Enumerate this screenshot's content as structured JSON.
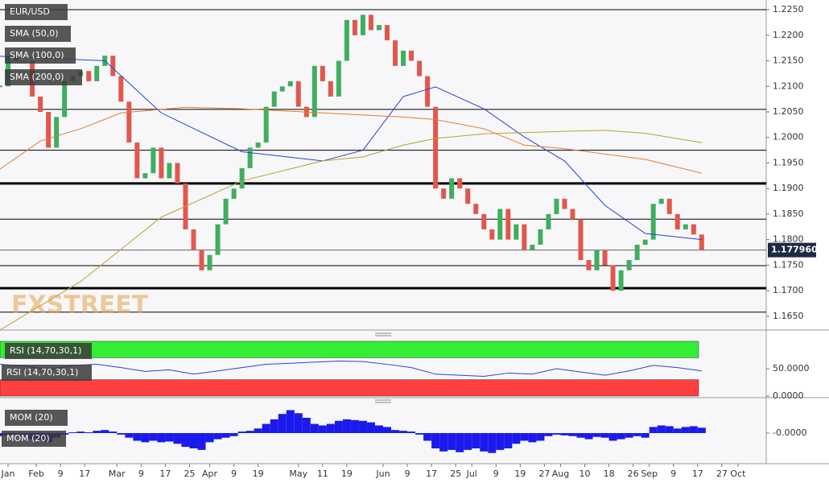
{
  "chart_data": [
    {
      "type": "candlestick",
      "title": "EUR/USD",
      "watermark": "FXSTREET",
      "xlim": [
        12,
        202
      ],
      "ylim": [
        1.1623,
        1.2269
      ],
      "yticks": [
        {
          "value": 1.165,
          "label": "1.1650"
        },
        {
          "value": 1.17,
          "label": "1.1700"
        },
        {
          "value": 1.175,
          "label": "1.1750"
        },
        {
          "value": 1.18,
          "label": "1.1800"
        },
        {
          "value": 1.185,
          "label": "1.1850"
        },
        {
          "value": 1.19,
          "label": "1.1900"
        },
        {
          "value": 1.195,
          "label": "1.1950"
        },
        {
          "value": 1.2,
          "label": "1.2000"
        },
        {
          "value": 1.205,
          "label": "1.2050"
        },
        {
          "value": 1.21,
          "label": "1.2100"
        },
        {
          "value": 1.215,
          "label": "1.2150"
        },
        {
          "value": 1.22,
          "label": "1.2200"
        },
        {
          "value": 1.225,
          "label": "1.2250"
        }
      ],
      "up_color": "#3fae5e",
      "down_color": "#e2574c",
      "x": [
        12,
        14,
        16,
        18,
        20,
        22,
        24,
        26,
        28,
        30,
        32,
        34,
        36,
        38,
        40,
        42,
        44,
        46,
        48,
        50,
        52,
        54,
        56,
        58,
        60,
        62,
        64,
        66,
        68,
        70,
        72,
        74,
        76,
        78,
        80,
        82,
        84,
        86,
        88,
        90,
        92,
        94,
        96,
        98,
        100,
        102,
        104,
        106,
        108,
        110,
        112,
        114,
        116,
        118,
        120,
        122,
        124,
        126,
        128,
        130,
        132,
        134,
        136,
        138,
        140,
        142,
        144,
        146,
        148,
        150,
        152,
        154,
        156,
        158,
        160,
        162,
        164,
        166,
        168,
        170,
        172,
        174,
        176,
        178,
        180,
        182,
        184,
        186
      ],
      "closes": [
        1.21,
        1.216,
        1.215,
        1.215,
        1.208,
        1.205,
        1.198,
        1.204,
        1.211,
        1.212,
        1.213,
        1.211,
        1.214,
        1.216,
        1.212,
        1.207,
        1.199,
        1.192,
        1.193,
        1.198,
        1.192,
        1.195,
        1.191,
        1.182,
        1.178,
        1.174,
        1.177,
        1.183,
        1.188,
        1.19,
        1.194,
        1.198,
        1.199,
        1.206,
        1.209,
        1.21,
        1.211,
        1.206,
        1.204,
        1.214,
        1.211,
        1.208,
        1.215,
        1.223,
        1.22,
        1.224,
        1.221,
        1.222,
        1.219,
        1.214,
        1.217,
        1.215,
        1.212,
        1.206,
        1.19,
        1.188,
        1.192,
        1.19,
        1.187,
        1.185,
        1.182,
        1.18,
        1.186,
        1.18,
        1.183,
        1.178,
        1.179,
        1.182,
        1.185,
        1.188,
        1.186,
        1.184,
        1.176,
        1.174,
        1.178,
        1.175,
        1.17,
        1.174,
        1.176,
        1.179,
        1.18,
        1.187,
        1.188,
        1.185,
        1.182,
        1.183,
        1.181,
        1.178
      ],
      "series": [
        {
          "name": "SMA (50,0)",
          "color": "#2740d8",
          "x": [
            12,
            38,
            52,
            72,
            92,
            102,
            112,
            120,
            132,
            142,
            152,
            162,
            172,
            186
          ],
          "values": [
            1.2159,
            1.215,
            1.2048,
            1.1972,
            1.1954,
            1.1975,
            1.208,
            1.2099,
            1.2056,
            1.2001,
            1.1954,
            1.1867,
            1.1812,
            1.18
          ]
        },
        {
          "name": "SMA (100,0)",
          "color": "#e87a2a",
          "x": [
            12,
            22,
            32,
            42,
            58,
            72,
            92,
            112,
            120,
            132,
            142,
            152,
            172,
            186
          ],
          "values": [
            1.1938,
            1.1993,
            1.2017,
            1.2048,
            1.2059,
            1.2056,
            1.2048,
            1.204,
            1.2035,
            1.2017,
            1.1985,
            1.1978,
            1.1957,
            1.193
          ]
        },
        {
          "name": "SMA (200,0)",
          "color": "#b5a42a",
          "x": [
            12,
            32,
            52,
            72,
            92,
            102,
            112,
            120,
            132,
            152,
            162,
            172,
            186
          ],
          "values": [
            1.1623,
            1.1718,
            1.1844,
            1.1915,
            1.1954,
            1.1962,
            1.1985,
            1.1998,
            1.2007,
            1.2012,
            1.2014,
            1.2008,
            1.199
          ]
        }
      ],
      "levels": [
        {
          "value": 1.225,
          "width": 1
        },
        {
          "value": 1.2055,
          "width": 1
        },
        {
          "value": 1.1975,
          "width": 1
        },
        {
          "value": 1.191,
          "width": 3
        },
        {
          "value": 1.184,
          "width": 1
        },
        {
          "value": 1.1749,
          "width": 1
        },
        {
          "value": 1.1705,
          "width": 3
        },
        {
          "value": 1.1658,
          "width": 1
        }
      ],
      "last_price": {
        "value": 1.17796,
        "label": "1.177960"
      }
    },
    {
      "type": "line",
      "title": "RSI (14,70,30,1)",
      "xlim": [
        12,
        202
      ],
      "ylim": [
        0,
        100
      ],
      "yticks": [
        {
          "value": 50,
          "label": "50.0000"
        },
        {
          "value": 0,
          "label": "0.0000"
        }
      ],
      "bands": [
        {
          "from": 70,
          "to": 100,
          "color": "#33ee33"
        },
        {
          "from": 0,
          "to": 30,
          "color": "#ff4040"
        }
      ],
      "series": [
        {
          "name": "RSI (14,70,30,1)",
          "color": "#2740d8",
          "x": [
            12,
            18,
            24,
            30,
            36,
            42,
            48,
            54,
            60,
            66,
            72,
            78,
            84,
            90,
            96,
            102,
            108,
            114,
            120,
            126,
            132,
            138,
            144,
            150,
            156,
            162,
            168,
            174,
            180,
            186
          ],
          "values": [
            58,
            55,
            48,
            56,
            58,
            52,
            45,
            48,
            40,
            46,
            52,
            58,
            60,
            62,
            64,
            63,
            58,
            52,
            40,
            38,
            36,
            42,
            40,
            50,
            44,
            38,
            46,
            56,
            52,
            46
          ]
        }
      ]
    },
    {
      "type": "bar",
      "title": "MOM (20)",
      "xlim": [
        12,
        202
      ],
      "ylim": [
        -0.04,
        0.04
      ],
      "yticks": [
        {
          "value": 0,
          "label": "-0.0000"
        }
      ],
      "xticks": [
        {
          "value": 14,
          "label": "Jan"
        },
        {
          "value": 21,
          "label": "Feb"
        },
        {
          "value": 27,
          "label": "9"
        },
        {
          "value": 33,
          "label": "17"
        },
        {
          "value": 41,
          "label": "Mar"
        },
        {
          "value": 47,
          "label": "9"
        },
        {
          "value": 53,
          "label": "17"
        },
        {
          "value": 59,
          "label": "25"
        },
        {
          "value": 64,
          "label": "Apr"
        },
        {
          "value": 70,
          "label": "9"
        },
        {
          "value": 76,
          "label": "19"
        },
        {
          "value": 86,
          "label": "May"
        },
        {
          "value": 92,
          "label": "11"
        },
        {
          "value": 98,
          "label": "19"
        },
        {
          "value": 107,
          "label": "Jun"
        },
        {
          "value": 113,
          "label": "9"
        },
        {
          "value": 119,
          "label": "17"
        },
        {
          "value": 125,
          "label": "25"
        },
        {
          "value": 129,
          "label": "Jul"
        },
        {
          "value": 135,
          "label": "9"
        },
        {
          "value": 141,
          "label": "19"
        },
        {
          "value": 147,
          "label": "27"
        },
        {
          "value": 151,
          "label": "Aug"
        },
        {
          "value": 157,
          "label": "10"
        },
        {
          "value": 163,
          "label": "18"
        },
        {
          "value": 169,
          "label": "26"
        },
        {
          "value": 173,
          "label": "Sep"
        },
        {
          "value": 179,
          "label": "9"
        },
        {
          "value": 185,
          "label": "17"
        },
        {
          "value": 191,
          "label": "27"
        },
        {
          "value": 195,
          "label": "Oct"
        }
      ],
      "series": [
        {
          "name": "MOM (20)",
          "color": "#1a1aee",
          "x": [
            12,
            14,
            16,
            18,
            20,
            22,
            24,
            26,
            28,
            30,
            32,
            34,
            36,
            38,
            40,
            42,
            44,
            46,
            48,
            50,
            52,
            54,
            56,
            58,
            60,
            62,
            64,
            66,
            68,
            70,
            72,
            74,
            76,
            78,
            80,
            82,
            84,
            86,
            88,
            90,
            92,
            94,
            96,
            98,
            100,
            102,
            104,
            106,
            108,
            110,
            112,
            114,
            116,
            118,
            120,
            122,
            124,
            126,
            128,
            130,
            132,
            134,
            136,
            138,
            140,
            142,
            144,
            146,
            148,
            150,
            152,
            154,
            156,
            158,
            160,
            162,
            164,
            166,
            168,
            170,
            172,
            174,
            176,
            178,
            180,
            182,
            184,
            186
          ],
          "values": [
            -0.004,
            -0.003,
            -0.002,
            -0.005,
            -0.008,
            -0.01,
            -0.012,
            -0.006,
            -0.002,
            0.001,
            0.002,
            0.001,
            0.003,
            0.004,
            0.002,
            -0.002,
            -0.006,
            -0.01,
            -0.012,
            -0.01,
            -0.012,
            -0.011,
            -0.014,
            -0.018,
            -0.02,
            -0.022,
            -0.012,
            -0.008,
            -0.006,
            -0.004,
            0.002,
            0.003,
            0.006,
            0.012,
            0.018,
            0.025,
            0.03,
            0.026,
            0.02,
            0.012,
            0.01,
            0.012,
            0.016,
            0.018,
            0.017,
            0.016,
            0.014,
            0.01,
            0.008,
            0.004,
            0.003,
            0.002,
            -0.002,
            -0.01,
            -0.02,
            -0.024,
            -0.022,
            -0.025,
            -0.022,
            -0.02,
            -0.024,
            -0.026,
            -0.022,
            -0.02,
            -0.014,
            -0.01,
            -0.012,
            -0.01,
            -0.004,
            -0.002,
            -0.003,
            -0.004,
            -0.006,
            -0.008,
            -0.005,
            -0.006,
            -0.01,
            -0.008,
            -0.006,
            -0.004,
            -0.006,
            0.008,
            0.01,
            0.009,
            0.006,
            0.008,
            0.009,
            0.007
          ]
        }
      ]
    }
  ]
}
